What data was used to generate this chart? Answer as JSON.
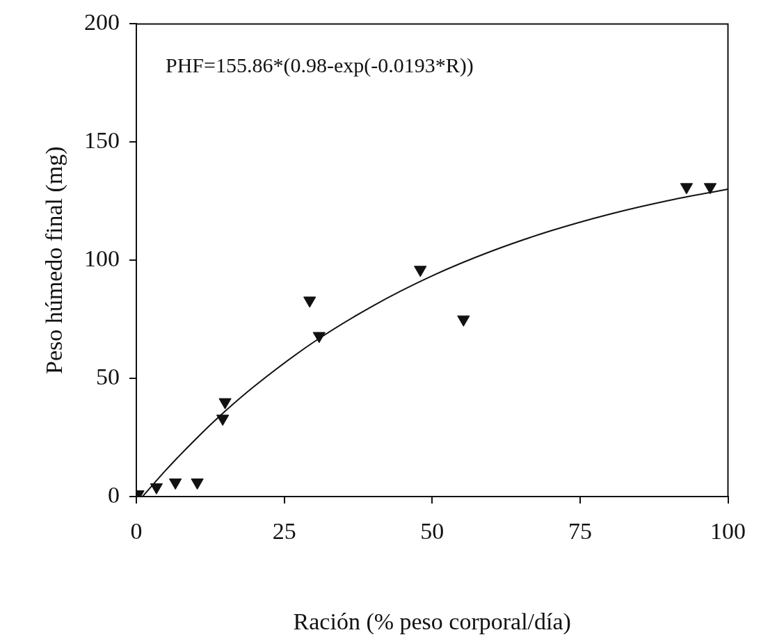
{
  "chart_data": {
    "type": "scatter",
    "xlabel": "Ración (% peso corporal/día)",
    "ylabel": "Peso húmedo final (mg)",
    "annotations": [
      "PHF=155.86*(0.98-exp(-0.0193*R))"
    ],
    "xlim": [
      0,
      100
    ],
    "xticks": [
      0,
      25,
      50,
      75,
      100
    ],
    "ylim": [
      0,
      200
    ],
    "yticks": [
      0,
      50,
      100,
      150,
      200
    ],
    "grid": false,
    "legend": false,
    "series": [
      {
        "color": "#111111",
        "marker": "triangle",
        "x": [
          0.3,
          3.4,
          6.6,
          10.3,
          14.6,
          15,
          29.3,
          30.9,
          48,
          55.3,
          93,
          97
        ],
        "values": [
          1,
          4,
          6,
          6,
          33,
          40,
          83,
          68,
          96,
          75,
          131,
          131
        ]
      },
      {
        "type": "line",
        "color": "#111111",
        "marker": "none",
        "line_style": "solid",
        "x": [
          1.05,
          5,
          10,
          15,
          20,
          30,
          40,
          50,
          60,
          70,
          80,
          90,
          100
        ],
        "values": [
          0,
          11.2,
          24.2,
          36.1,
          46.8,
          65.4,
          80.7,
          93.4,
          103.8,
          112.4,
          119.5,
          125.3,
          130.1
        ]
      }
    ]
  }
}
